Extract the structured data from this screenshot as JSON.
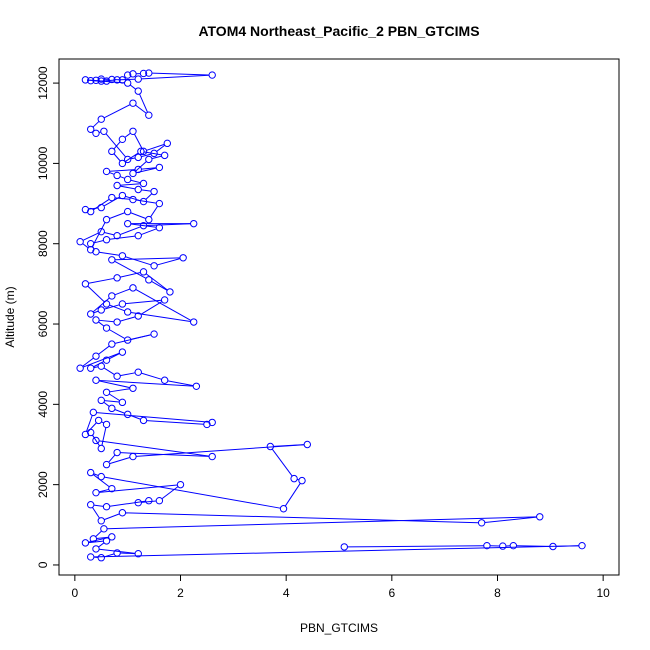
{
  "chart_data": {
    "type": "line",
    "title": "ATOM4 Northeast_Pacific_2 PBN_GTCIMS",
    "xlabel": "PBN_GTCIMS",
    "ylabel": "Altitude (m)",
    "xlim": [
      0,
      10
    ],
    "ylim": [
      0,
      12500
    ],
    "x_ticks": [
      0,
      2,
      4,
      6,
      8,
      10
    ],
    "y_ticks": [
      0,
      2000,
      4000,
      6000,
      8000,
      10000,
      12000
    ],
    "x_tick_labels": [
      "0",
      "2",
      "4",
      "6",
      "8",
      "10"
    ],
    "y_tick_labels": [
      "0",
      "2000",
      "4000",
      "6000",
      "8000",
      "10000",
      "12000"
    ],
    "grid": false,
    "colors": {
      "series": "#0000ff",
      "axis": "#000000"
    },
    "series": [
      {
        "marker": "open-circle",
        "x": [
          5.1,
          7.8,
          8.1,
          8.3,
          9.05,
          9.6,
          0.3,
          0.5,
          0.8,
          1.2,
          0.4,
          0.6,
          0.2,
          0.7,
          0.35,
          0.55,
          8.8,
          7.7,
          0.9,
          0.5,
          0.3,
          0.6,
          1.4,
          1.2,
          1.6,
          2.0,
          0.4,
          0.7,
          0.3,
          0.5,
          3.95,
          4.3,
          4.15,
          3.7,
          4.4,
          1.1,
          0.6,
          0.8,
          2.6,
          0.4,
          0.3,
          0.5,
          0.6,
          0.45,
          0.2,
          0.35,
          2.6,
          2.5,
          1.3,
          1.0,
          0.7,
          0.5,
          0.9,
          0.6,
          1.1,
          0.4,
          2.3,
          1.7,
          1.2,
          0.8,
          0.5,
          0.3,
          0.6,
          0.9,
          0.1,
          0.4,
          0.7,
          1.5,
          1.0,
          0.6,
          0.4,
          0.8,
          1.2,
          1.7,
          0.9,
          0.5,
          0.3,
          0.7,
          1.1,
          2.25,
          1.0,
          0.6,
          0.2,
          0.8,
          1.3,
          1.8,
          1.4,
          0.7,
          2.05,
          1.5,
          0.9,
          0.4,
          0.3,
          0.6,
          1.2,
          1.6,
          1.0,
          2.25,
          1.3,
          0.8,
          0.5,
          0.1,
          0.3,
          0.6,
          1.0,
          1.4,
          1.6,
          1.1,
          0.7,
          0.3,
          0.2,
          0.5,
          0.9,
          1.3,
          1.5,
          1.2,
          0.8,
          1.3,
          1.0,
          0.8,
          0.6,
          1.2,
          1.6,
          1.1,
          1.4,
          1.7,
          1.25,
          0.9,
          0.7,
          0.9,
          1.1,
          1.3,
          1.75,
          1.5,
          1.2,
          1.0,
          0.55,
          0.4,
          0.3,
          0.5,
          1.1,
          1.4,
          1.2,
          1.0,
          0.2,
          0.5,
          0.8,
          1.2,
          2.6,
          1.4,
          1.3,
          1.1,
          1.0,
          0.9,
          0.7,
          0.5,
          0.4,
          0.3,
          0.6
        ],
        "y": [
          450,
          480,
          470,
          480,
          460,
          480,
          200,
          180,
          300,
          280,
          400,
          600,
          550,
          700,
          650,
          900,
          1200,
          1050,
          1300,
          1100,
          1500,
          1450,
          1600,
          1550,
          1600,
          2000,
          1800,
          1900,
          2300,
          2200,
          1400,
          2100,
          2150,
          2950,
          3000,
          2700,
          2500,
          2800,
          2700,
          3100,
          3300,
          2900,
          3500,
          3600,
          3250,
          3800,
          3550,
          3500,
          3600,
          3750,
          3900,
          4100,
          4050,
          4300,
          4400,
          4600,
          4450,
          4600,
          4800,
          4700,
          4950,
          4900,
          5100,
          5300,
          4900,
          5200,
          5500,
          5750,
          5600,
          5900,
          6100,
          6050,
          6200,
          6600,
          6500,
          6350,
          6250,
          6700,
          6900,
          6050,
          6300,
          6500,
          7000,
          7150,
          7300,
          6800,
          7100,
          7600,
          7650,
          7450,
          7700,
          7800,
          8000,
          8100,
          8200,
          8400,
          8500,
          8500,
          8450,
          8200,
          8300,
          8050,
          7850,
          8600,
          8800,
          8600,
          9000,
          9100,
          9150,
          8800,
          8850,
          8900,
          9200,
          9050,
          9300,
          9350,
          9450,
          9500,
          9600,
          9700,
          9800,
          9850,
          9900,
          9750,
          10100,
          10200,
          10300,
          10000,
          10300,
          10600,
          10800,
          10300,
          10500,
          10250,
          10150,
          10100,
          10800,
          10750,
          10850,
          11100,
          11500,
          11200,
          11800,
          12000,
          12080,
          12050,
          12080,
          12100,
          12200,
          12250,
          12240,
          12230,
          12200,
          12080,
          12090,
          12100,
          12070,
          12060,
          12050
        ]
      }
    ]
  }
}
